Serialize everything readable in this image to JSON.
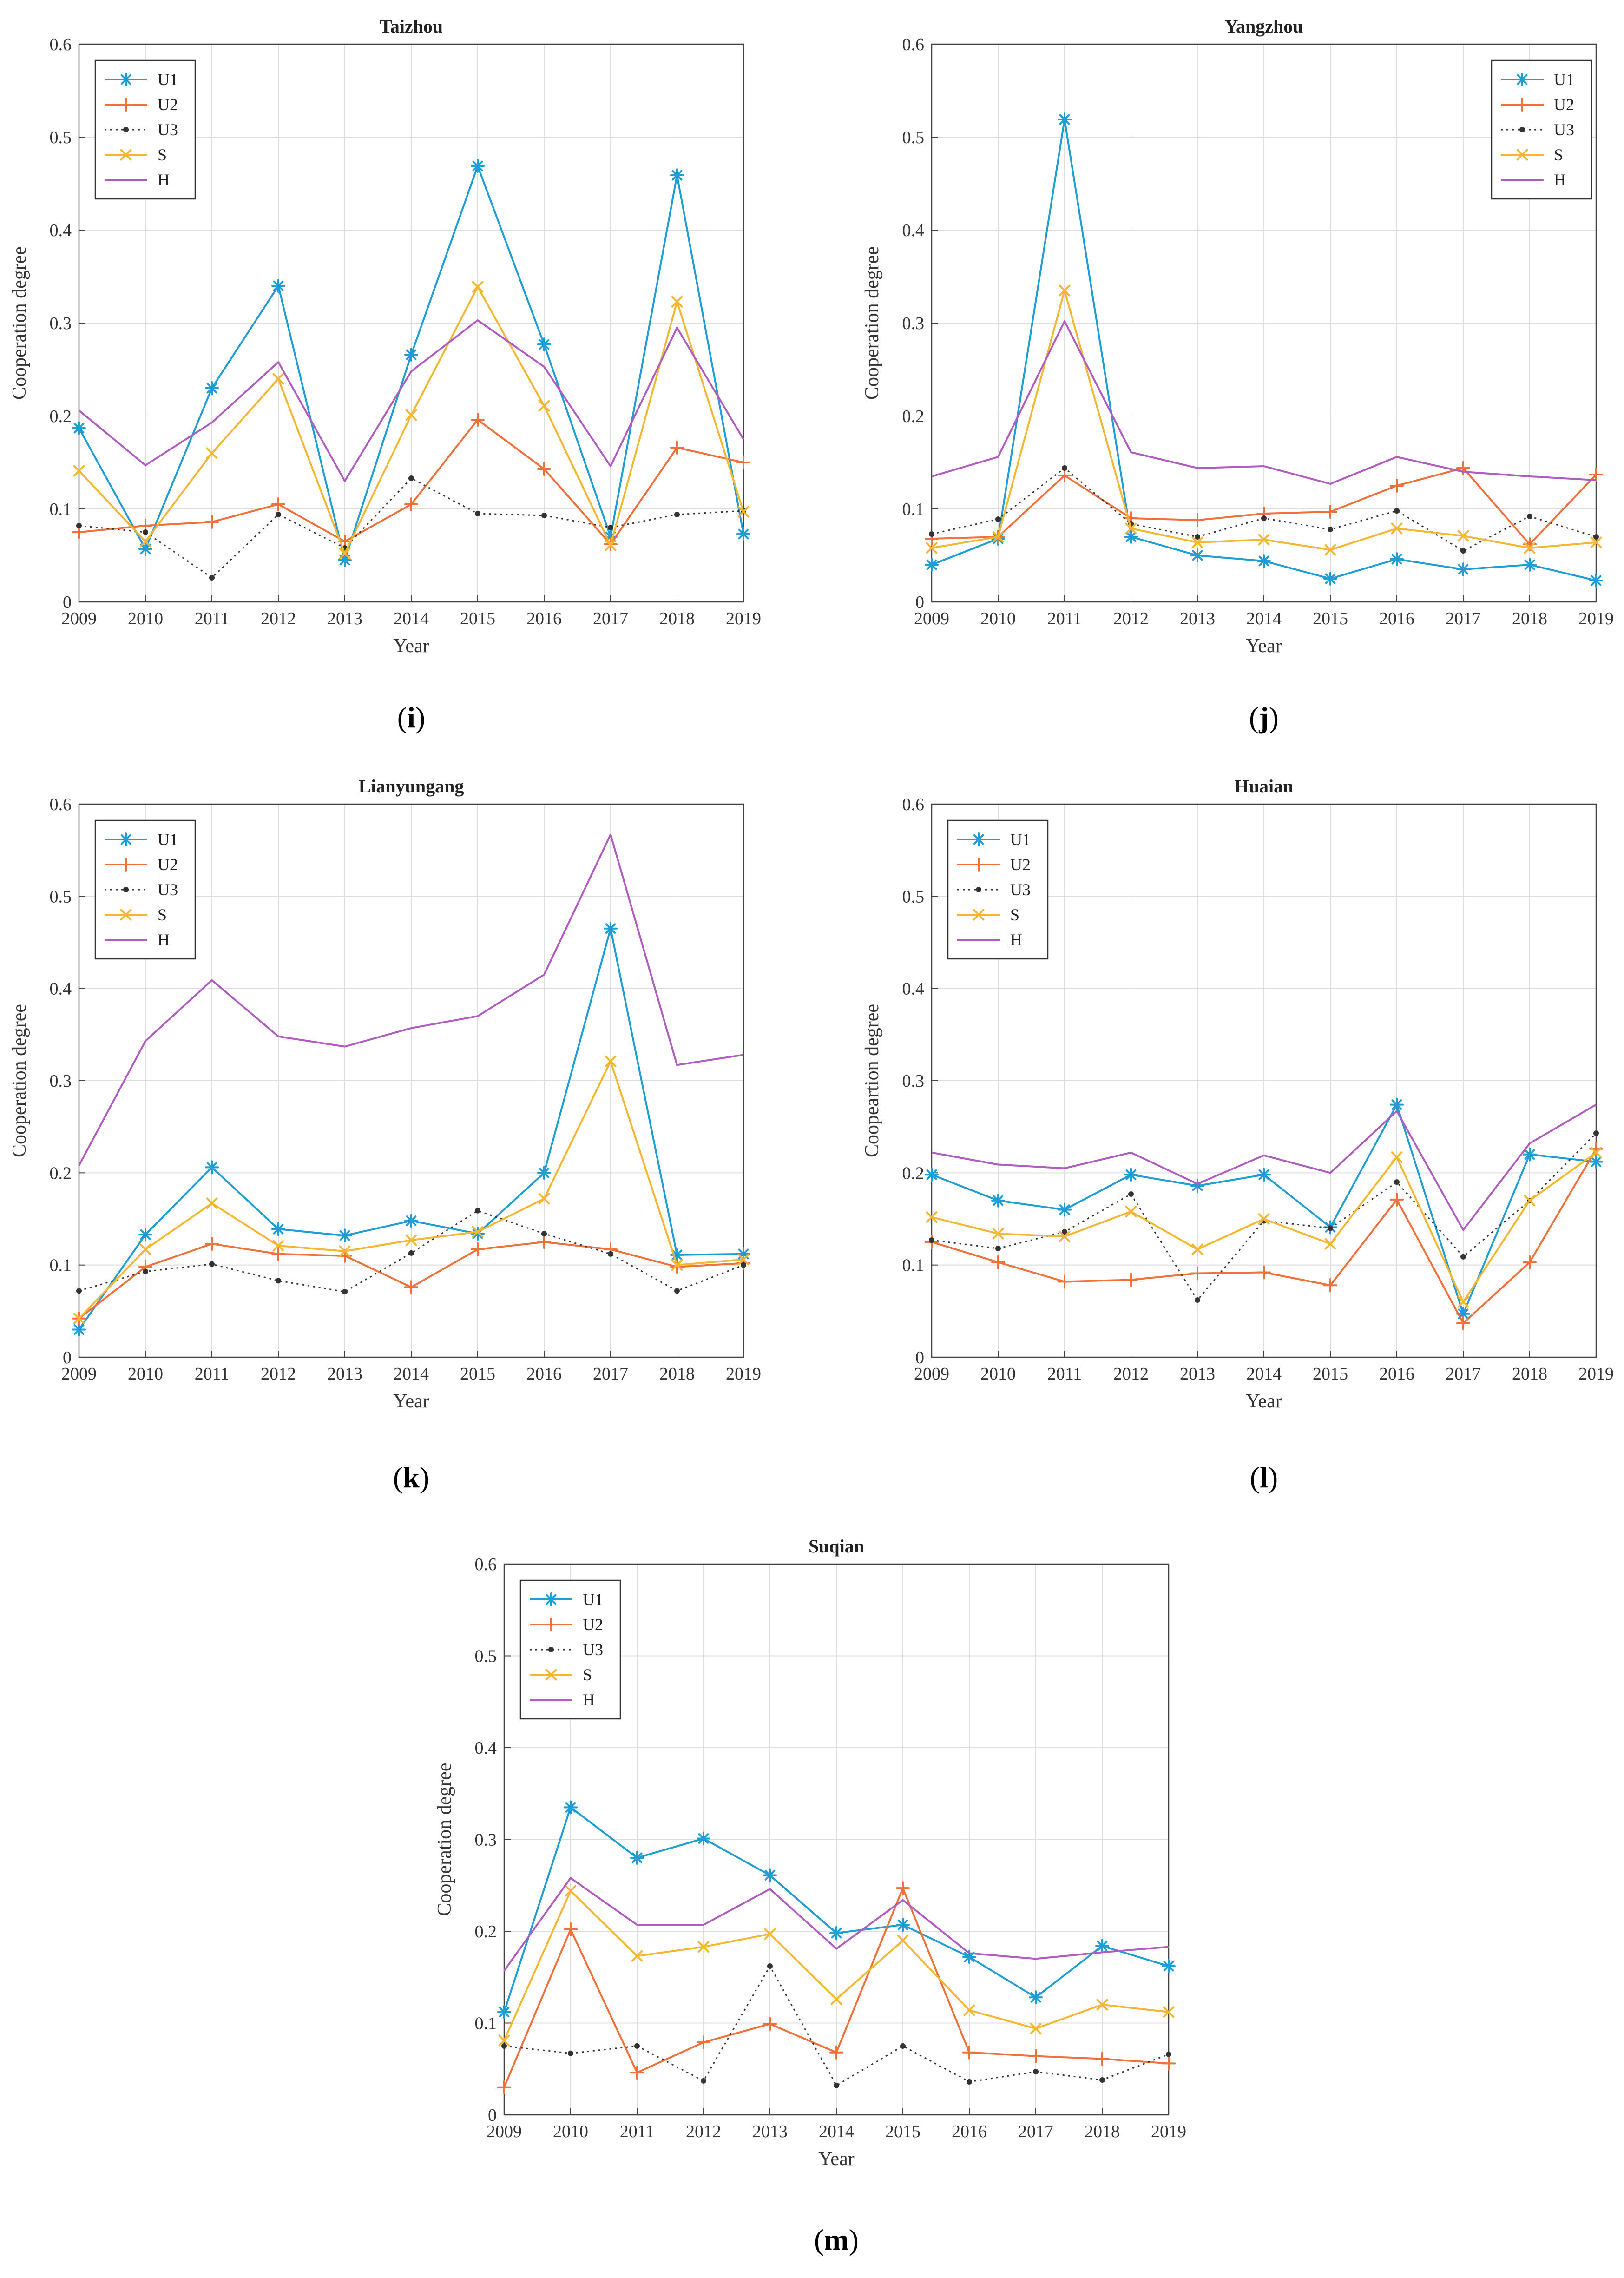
{
  "figure": {
    "colors": {
      "U1": "#1f9ed6",
      "U2": "#f2703a",
      "U3": "#333333",
      "S": "#f5b731",
      "H": "#b05cc0",
      "grid": "#dedede",
      "axis": "#444444"
    }
  },
  "chart_data": [
    {
      "id": "i",
      "type": "line",
      "title": "Taizhou",
      "panel_label": "i",
      "xlabel": "Year",
      "ylabel": "Cooperation degree",
      "xlim": [
        2009,
        2019
      ],
      "ylim": [
        0,
        0.6
      ],
      "x": [
        2009,
        2010,
        2011,
        2012,
        2013,
        2014,
        2015,
        2016,
        2017,
        2018,
        2019
      ],
      "xticks": [
        "2009",
        "2010",
        "2011",
        "2012",
        "2013",
        "2014",
        "2015",
        "2016",
        "2017",
        "2018",
        "2019"
      ],
      "yticks": [
        "0",
        "0.1",
        "0.2",
        "0.3",
        "0.4",
        "0.5",
        "0.6"
      ],
      "legend_position": "top-left",
      "series": [
        {
          "name": "U1",
          "marker": "asterisk",
          "values": [
            0.187,
            0.057,
            0.23,
            0.34,
            0.045,
            0.266,
            0.469,
            0.277,
            0.07,
            0.459,
            0.073
          ]
        },
        {
          "name": "U2",
          "marker": "plus",
          "values": [
            0.075,
            0.082,
            0.086,
            0.105,
            0.065,
            0.105,
            0.196,
            0.143,
            0.062,
            0.166,
            0.15
          ]
        },
        {
          "name": "U3",
          "marker": "dot",
          "values": [
            0.082,
            0.075,
            0.026,
            0.094,
            0.058,
            0.133,
            0.095,
            0.093,
            0.08,
            0.094,
            0.098
          ]
        },
        {
          "name": "S",
          "marker": "x",
          "values": [
            0.141,
            0.065,
            0.16,
            0.24,
            0.052,
            0.201,
            0.339,
            0.211,
            0.061,
            0.323,
            0.097
          ]
        },
        {
          "name": "H",
          "marker": "none",
          "values": [
            0.206,
            0.147,
            0.193,
            0.258,
            0.13,
            0.248,
            0.303,
            0.253,
            0.146,
            0.295,
            0.175
          ]
        }
      ]
    },
    {
      "id": "j",
      "type": "line",
      "title": "Yangzhou",
      "panel_label": "j",
      "xlabel": "Year",
      "ylabel": "Cooperation degree",
      "xlim": [
        2009,
        2019
      ],
      "ylim": [
        0,
        0.6
      ],
      "x": [
        2009,
        2010,
        2011,
        2012,
        2013,
        2014,
        2015,
        2016,
        2017,
        2018,
        2019
      ],
      "xticks": [
        "2009",
        "2010",
        "2011",
        "2012",
        "2013",
        "2014",
        "2015",
        "2016",
        "2017",
        "2018",
        "2019"
      ],
      "yticks": [
        "0",
        "0.1",
        "0.2",
        "0.3",
        "0.4",
        "0.5",
        "0.6"
      ],
      "legend_position": "top-right",
      "series": [
        {
          "name": "U1",
          "marker": "asterisk",
          "values": [
            0.04,
            0.068,
            0.519,
            0.07,
            0.05,
            0.044,
            0.025,
            0.046,
            0.035,
            0.04,
            0.023
          ]
        },
        {
          "name": "U2",
          "marker": "plus",
          "values": [
            0.068,
            0.07,
            0.136,
            0.09,
            0.088,
            0.095,
            0.097,
            0.125,
            0.144,
            0.062,
            0.137
          ]
        },
        {
          "name": "U3",
          "marker": "dot",
          "values": [
            0.073,
            0.089,
            0.144,
            0.084,
            0.07,
            0.09,
            0.078,
            0.098,
            0.055,
            0.092,
            0.07
          ]
        },
        {
          "name": "S",
          "marker": "x",
          "values": [
            0.058,
            0.07,
            0.335,
            0.079,
            0.064,
            0.067,
            0.056,
            0.079,
            0.071,
            0.058,
            0.064
          ]
        },
        {
          "name": "H",
          "marker": "none",
          "values": [
            0.135,
            0.156,
            0.302,
            0.161,
            0.144,
            0.146,
            0.127,
            0.156,
            0.14,
            0.135,
            0.131
          ]
        }
      ]
    },
    {
      "id": "k",
      "type": "line",
      "title": "Lianyungang",
      "panel_label": "k",
      "xlabel": "Year",
      "ylabel": "Cooperation degree",
      "xlim": [
        2009,
        2019
      ],
      "ylim": [
        0,
        0.6
      ],
      "x": [
        2009,
        2010,
        2011,
        2012,
        2013,
        2014,
        2015,
        2016,
        2017,
        2018,
        2019
      ],
      "xticks": [
        "2009",
        "2010",
        "2011",
        "2012",
        "2013",
        "2014",
        "2015",
        "2016",
        "2017",
        "2018",
        "2019"
      ],
      "yticks": [
        "0",
        "0.1",
        "0.2",
        "0.3",
        "0.4",
        "0.5",
        "0.6"
      ],
      "legend_position": "top-left",
      "series": [
        {
          "name": "U1",
          "marker": "asterisk",
          "values": [
            0.03,
            0.133,
            0.206,
            0.139,
            0.132,
            0.148,
            0.134,
            0.2,
            0.465,
            0.111,
            0.112
          ]
        },
        {
          "name": "U2",
          "marker": "plus",
          "values": [
            0.042,
            0.098,
            0.123,
            0.112,
            0.11,
            0.076,
            0.117,
            0.125,
            0.117,
            0.098,
            0.102
          ]
        },
        {
          "name": "U3",
          "marker": "dot",
          "values": [
            0.072,
            0.093,
            0.101,
            0.083,
            0.071,
            0.113,
            0.159,
            0.134,
            0.112,
            0.072,
            0.1
          ]
        },
        {
          "name": "S",
          "marker": "x",
          "values": [
            0.042,
            0.117,
            0.167,
            0.121,
            0.115,
            0.127,
            0.136,
            0.172,
            0.321,
            0.1,
            0.106
          ]
        },
        {
          "name": "H",
          "marker": "none",
          "values": [
            0.208,
            0.343,
            0.409,
            0.348,
            0.337,
            0.357,
            0.37,
            0.415,
            0.567,
            0.317,
            0.328
          ]
        }
      ]
    },
    {
      "id": "l",
      "type": "line",
      "title": "Huaian",
      "panel_label": "l",
      "xlabel": "Year",
      "ylabel": "Coopeartion degree",
      "xlim": [
        2009,
        2019
      ],
      "ylim": [
        0,
        0.6
      ],
      "x": [
        2009,
        2010,
        2011,
        2012,
        2013,
        2014,
        2015,
        2016,
        2017,
        2018,
        2019
      ],
      "xticks": [
        "2009",
        "2010",
        "2011",
        "2012",
        "2013",
        "2014",
        "2015",
        "2016",
        "2017",
        "2018",
        "2019"
      ],
      "yticks": [
        "0",
        "0.1",
        "0.2",
        "0.3",
        "0.4",
        "0.5",
        "0.6"
      ],
      "legend_position": "top-left",
      "series": [
        {
          "name": "U1",
          "marker": "asterisk",
          "values": [
            0.198,
            0.17,
            0.16,
            0.198,
            0.186,
            0.198,
            0.141,
            0.274,
            0.047,
            0.22,
            0.212
          ]
        },
        {
          "name": "U2",
          "marker": "plus",
          "values": [
            0.125,
            0.103,
            0.082,
            0.084,
            0.091,
            0.092,
            0.078,
            0.171,
            0.037,
            0.103,
            0.226
          ]
        },
        {
          "name": "U3",
          "marker": "dot",
          "values": [
            0.127,
            0.118,
            0.136,
            0.177,
            0.062,
            0.148,
            0.14,
            0.19,
            0.109,
            0.17,
            0.243
          ]
        },
        {
          "name": "S",
          "marker": "x",
          "values": [
            0.152,
            0.134,
            0.131,
            0.158,
            0.117,
            0.15,
            0.123,
            0.217,
            0.06,
            0.17,
            0.222
          ]
        },
        {
          "name": "H",
          "marker": "none",
          "values": [
            0.222,
            0.209,
            0.205,
            0.222,
            0.188,
            0.219,
            0.2,
            0.267,
            0.138,
            0.232,
            0.274
          ]
        }
      ]
    },
    {
      "id": "m",
      "type": "line",
      "title": "Suqian",
      "panel_label": "m",
      "xlabel": "Year",
      "ylabel": "Cooperation degree",
      "xlim": [
        2009,
        2019
      ],
      "ylim": [
        0,
        0.6
      ],
      "x": [
        2009,
        2010,
        2011,
        2012,
        2013,
        2014,
        2015,
        2016,
        2017,
        2018,
        2019
      ],
      "xticks": [
        "2009",
        "2010",
        "2011",
        "2012",
        "2013",
        "2014",
        "2015",
        "2016",
        "2017",
        "2018",
        "2019"
      ],
      "yticks": [
        "0",
        "0.1",
        "0.2",
        "0.3",
        "0.4",
        "0.5",
        "0.6"
      ],
      "legend_position": "top-left",
      "series": [
        {
          "name": "U1",
          "marker": "asterisk",
          "values": [
            0.112,
            0.335,
            0.28,
            0.301,
            0.261,
            0.198,
            0.207,
            0.172,
            0.128,
            0.184,
            0.162
          ]
        },
        {
          "name": "U2",
          "marker": "plus",
          "values": [
            0.03,
            0.202,
            0.046,
            0.079,
            0.099,
            0.068,
            0.247,
            0.068,
            0.064,
            0.061,
            0.056
          ]
        },
        {
          "name": "U3",
          "marker": "dot",
          "values": [
            0.075,
            0.067,
            0.075,
            0.037,
            0.162,
            0.032,
            0.075,
            0.036,
            0.047,
            0.038,
            0.066
          ]
        },
        {
          "name": "S",
          "marker": "x",
          "values": [
            0.081,
            0.244,
            0.173,
            0.183,
            0.197,
            0.126,
            0.19,
            0.114,
            0.094,
            0.12,
            0.112
          ]
        },
        {
          "name": "H",
          "marker": "none",
          "values": [
            0.157,
            0.258,
            0.207,
            0.207,
            0.246,
            0.181,
            0.234,
            0.176,
            0.17,
            0.177,
            0.183
          ]
        }
      ]
    }
  ]
}
